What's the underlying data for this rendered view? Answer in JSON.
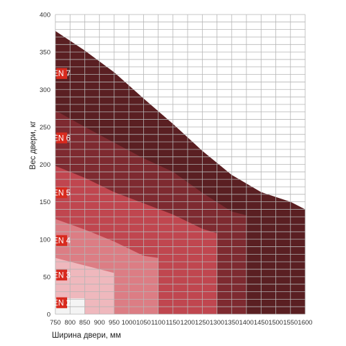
{
  "chart_data": {
    "type": "area",
    "xlabel": "Ширина двери, мм",
    "ylabel": "Вес двери, кг",
    "xlim": [
      750,
      1600
    ],
    "ylim": [
      0,
      400
    ],
    "x_ticks": [
      750,
      800,
      850,
      900,
      950,
      1000,
      1050,
      1100,
      1150,
      1200,
      1250,
      1300,
      1350,
      1400,
      1450,
      1500,
      1550,
      1600
    ],
    "y_ticks": [
      0,
      50,
      100,
      150,
      200,
      250,
      300,
      350,
      400
    ],
    "grid": true,
    "series": [
      {
        "name": "EN 7",
        "color": "#5a1f22",
        "label_y": 314,
        "points": [
          [
            750,
            378
          ],
          [
            850,
            352
          ],
          [
            950,
            323
          ],
          [
            1050,
            288
          ],
          [
            1150,
            254
          ],
          [
            1250,
            218
          ],
          [
            1350,
            186
          ],
          [
            1450,
            163
          ],
          [
            1550,
            150
          ],
          [
            1600,
            140
          ],
          [
            1600,
            0
          ]
        ]
      },
      {
        "name": "EN 6",
        "color": "#7e2a30",
        "label_y": 228,
        "points": [
          [
            750,
            272
          ],
          [
            850,
            250
          ],
          [
            950,
            229
          ],
          [
            1050,
            208
          ],
          [
            1150,
            190
          ],
          [
            1250,
            162
          ],
          [
            1350,
            137
          ],
          [
            1400,
            132
          ],
          [
            1400,
            0
          ]
        ]
      },
      {
        "name": "EN 5",
        "color": "#c0464f",
        "label_y": 155,
        "points": [
          [
            750,
            198
          ],
          [
            850,
            182
          ],
          [
            950,
            163
          ],
          [
            1050,
            148
          ],
          [
            1150,
            133
          ],
          [
            1250,
            114
          ],
          [
            1300,
            108
          ],
          [
            1300,
            0
          ]
        ]
      },
      {
        "name": "EN 4",
        "color": "#dc7d84",
        "label_y": 91,
        "points": [
          [
            750,
            127
          ],
          [
            850,
            113
          ],
          [
            950,
            97
          ],
          [
            1050,
            78
          ],
          [
            1100,
            75
          ],
          [
            1100,
            0
          ]
        ]
      },
      {
        "name": "EN 3",
        "color": "#efb8bd",
        "label_y": 45,
        "points": [
          [
            750,
            75
          ],
          [
            850,
            65
          ],
          [
            950,
            55
          ],
          [
            950,
            0
          ]
        ]
      },
      {
        "name": "EN 2",
        "color": "#f4f4f4",
        "label_y": 8,
        "points": [
          [
            750,
            21
          ],
          [
            850,
            21
          ],
          [
            850,
            0
          ]
        ]
      }
    ],
    "label_color": "#d82a1e"
  }
}
